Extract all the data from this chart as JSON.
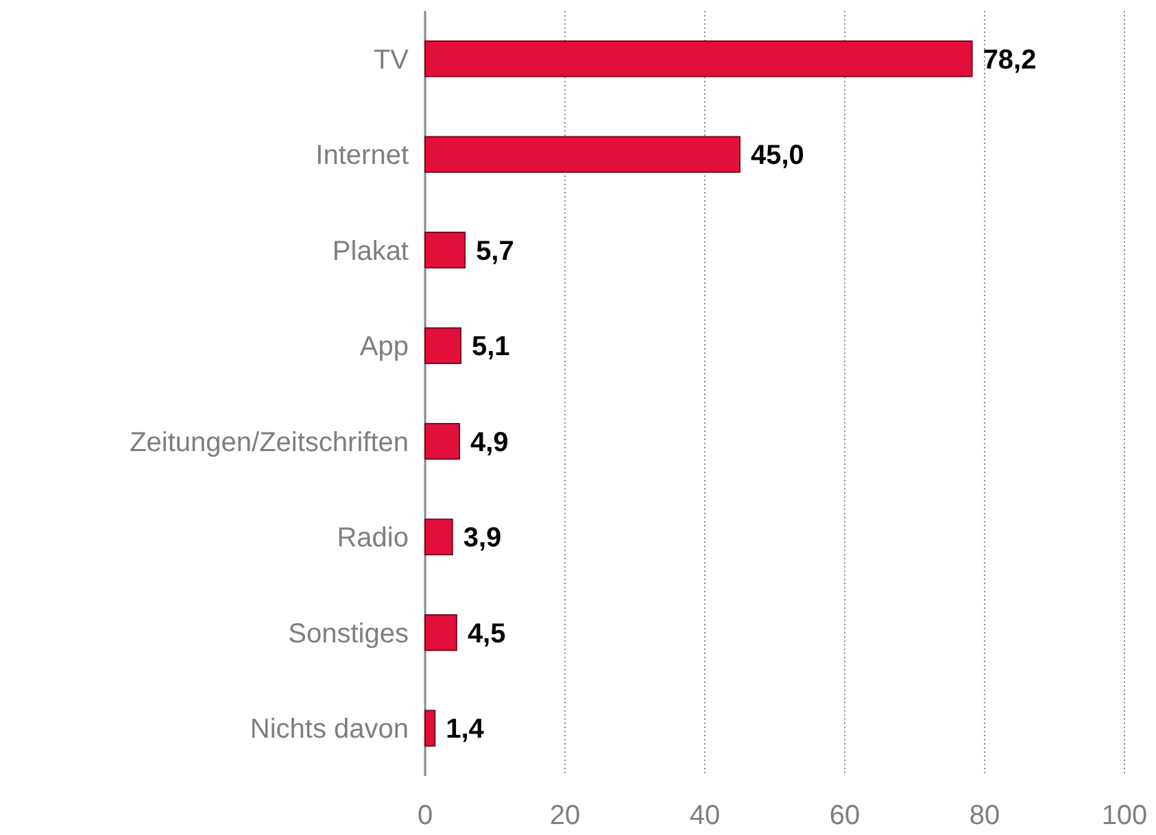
{
  "chart_data": {
    "type": "bar",
    "orientation": "horizontal",
    "categories": [
      "TV",
      "Internet",
      "Plakat",
      "App",
      "Zeitungen/Zeitschriften",
      "Radio",
      "Sonstiges",
      "Nichts davon"
    ],
    "values": [
      78.2,
      45.0,
      5.7,
      5.1,
      4.9,
      3.9,
      4.5,
      1.4
    ],
    "value_labels": [
      "78,2",
      "45,0",
      "5,7",
      "5,1",
      "4,9",
      "3,9",
      "4,5",
      "1,4"
    ],
    "color": "#e3103c",
    "xlim": [
      0,
      100
    ],
    "xticks": [
      0,
      20,
      40,
      60,
      80,
      100
    ],
    "grid": "x"
  }
}
